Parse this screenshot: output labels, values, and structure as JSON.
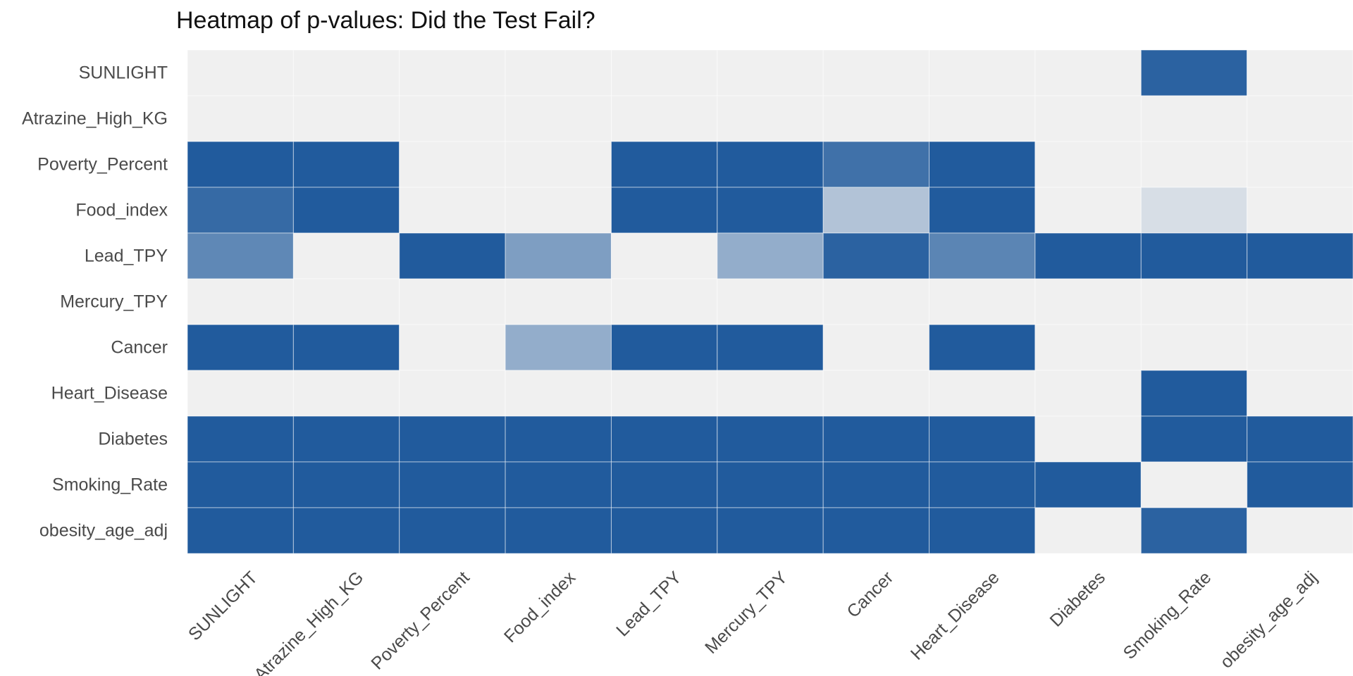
{
  "chart_data": {
    "type": "heatmap",
    "title": "Heatmap of p-values: Did the Test Fail?",
    "xlabel": "",
    "ylabel": "",
    "x_categories": [
      "SUNLIGHT",
      "Atrazine_High_KG",
      "Poverty_Percent",
      "Food_index",
      "Lead_TPY",
      "Mercury_TPY",
      "Cancer",
      "Heart_Disease",
      "Diabetes",
      "Smoking_Rate",
      "obesity_age_adj"
    ],
    "y_categories": [
      "SUNLIGHT",
      "Atrazine_High_KG",
      "Poverty_Percent",
      "Food_index",
      "Lead_TPY",
      "Mercury_TPY",
      "Cancer",
      "Heart_Disease",
      "Diabetes",
      "Smoking_Rate",
      "obesity_age_adj"
    ],
    "values": [
      [
        0,
        0,
        0,
        0,
        0,
        0,
        0,
        0,
        0,
        0.95,
        0
      ],
      [
        0,
        0,
        0,
        0,
        0,
        0,
        0,
        0,
        0,
        0,
        0
      ],
      [
        1,
        1,
        0,
        0,
        1,
        1,
        0.85,
        1,
        0,
        0,
        0
      ],
      [
        0.9,
        1,
        0,
        0,
        1,
        1,
        0.3,
        1,
        0,
        0.12,
        0
      ],
      [
        0.7,
        0,
        1,
        0.55,
        0,
        0.45,
        0.95,
        0.72,
        1,
        1,
        1
      ],
      [
        0,
        0,
        0,
        0,
        0,
        0,
        0,
        0,
        0,
        0,
        0
      ],
      [
        1,
        1,
        0,
        0.45,
        1,
        1,
        0,
        1,
        0,
        0,
        0
      ],
      [
        0,
        0,
        0,
        0,
        0,
        0,
        0,
        0,
        0,
        1,
        0
      ],
      [
        1,
        1,
        1,
        1,
        1,
        1,
        1,
        1,
        0,
        1,
        1
      ],
      [
        1,
        1,
        1,
        1,
        1,
        1,
        1,
        1,
        1,
        0,
        1
      ],
      [
        1,
        1,
        1,
        1,
        1,
        1,
        1,
        1,
        0,
        0.95,
        0
      ]
    ],
    "color_low": "#f0f0f0",
    "color_high": "#215b9d",
    "legend": "none",
    "grid": true
  }
}
